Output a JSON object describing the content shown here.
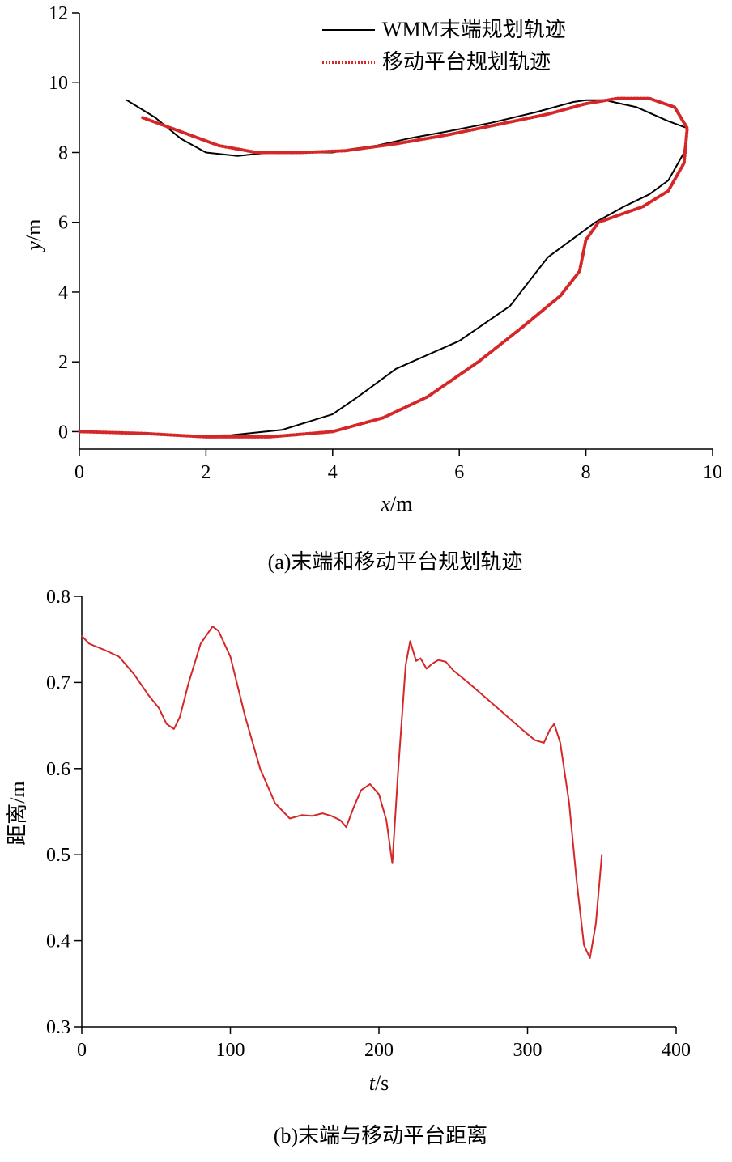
{
  "chart_data": [
    {
      "type": "line",
      "caption": "(a)末端和移动平台规划轨迹",
      "xlabel": {
        "var": "x",
        "unit": "/m"
      },
      "ylabel": {
        "var": "y",
        "unit": "/m"
      },
      "xlim": [
        0,
        10
      ],
      "ylim": [
        -0.5,
        12
      ],
      "xticks": [
        0,
        2,
        4,
        6,
        8,
        10
      ],
      "yticks": [
        0,
        2,
        4,
        6,
        8,
        10,
        12
      ],
      "legend_position": "top-right",
      "grid": false,
      "series": [
        {
          "name": "WMM末端规划轨迹",
          "color": "#000000",
          "style": "solid",
          "x": [
            0.75,
            1.2,
            1.6,
            2.0,
            2.5,
            3.0,
            3.5,
            4.0,
            4.3,
            4.7,
            5.2,
            5.8,
            6.5,
            7.2,
            7.8,
            8.0,
            8.3,
            8.8,
            9.3,
            9.6,
            9.55,
            9.3,
            9.0,
            8.6,
            8.15,
            7.4,
            6.8,
            6.0,
            5.0,
            4.4,
            4.0,
            3.2,
            2.4,
            1.6,
            1.1
          ],
          "y": [
            9.5,
            9.0,
            8.4,
            8.0,
            7.9,
            8.0,
            8.0,
            8.0,
            8.1,
            8.2,
            8.4,
            8.6,
            8.85,
            9.15,
            9.45,
            9.5,
            9.5,
            9.3,
            8.9,
            8.7,
            8.0,
            7.2,
            6.8,
            6.45,
            6.0,
            5.0,
            3.6,
            2.6,
            1.8,
            1.0,
            0.5,
            0.05,
            -0.1,
            -0.12,
            -0.05
          ]
        },
        {
          "name": "移动平台规划轨迹",
          "color": "#d62728",
          "style": "dotted",
          "x": [
            1.0,
            1.6,
            2.2,
            2.8,
            3.5,
            4.2,
            5.0,
            5.8,
            6.6,
            7.4,
            8.0,
            8.5,
            9.0,
            9.4,
            9.6,
            9.55,
            9.3,
            8.9,
            8.2,
            8.0,
            7.9,
            7.6,
            7.0,
            6.3,
            5.5,
            4.8,
            4.0,
            3.0,
            2.0,
            1.0,
            0.0
          ],
          "y": [
            9.0,
            8.6,
            8.2,
            8.0,
            8.0,
            8.05,
            8.25,
            8.5,
            8.8,
            9.1,
            9.4,
            9.55,
            9.55,
            9.3,
            8.7,
            7.7,
            6.9,
            6.45,
            6.0,
            5.5,
            4.6,
            3.9,
            3.0,
            2.0,
            1.0,
            0.4,
            0.0,
            -0.15,
            -0.15,
            -0.05,
            0.0
          ]
        }
      ]
    },
    {
      "type": "line",
      "caption": "(b)末端与移动平台距离",
      "xlabel": {
        "var": "t",
        "unit": "/s"
      },
      "ylabel": {
        "var": "",
        "unit": "距离/m"
      },
      "xlim": [
        0,
        400
      ],
      "ylim": [
        0.3,
        0.8
      ],
      "xticks": [
        0,
        100,
        200,
        300,
        400
      ],
      "yticks": [
        0.3,
        0.4,
        0.5,
        0.6,
        0.7,
        0.8
      ],
      "yticklabels": [
        "0.3",
        "0.4",
        "0.5",
        "0.6",
        "0.7",
        "0.8"
      ],
      "grid": false,
      "series": [
        {
          "name": "",
          "color": "#d62728",
          "style": "solid",
          "x": [
            0,
            5,
            15,
            25,
            35,
            45,
            52,
            57,
            62,
            66,
            72,
            80,
            88,
            92,
            100,
            110,
            120,
            130,
            140,
            148,
            155,
            162,
            168,
            174,
            178,
            183,
            188,
            194,
            200,
            205,
            209,
            213,
            218,
            221,
            225,
            228,
            232,
            236,
            240,
            245,
            250,
            260,
            270,
            280,
            290,
            300,
            305,
            311,
            315,
            318,
            322,
            328,
            333,
            338,
            342,
            346,
            350
          ],
          "y": [
            0.754,
            0.745,
            0.738,
            0.73,
            0.71,
            0.685,
            0.67,
            0.652,
            0.646,
            0.66,
            0.7,
            0.745,
            0.765,
            0.76,
            0.73,
            0.66,
            0.6,
            0.56,
            0.542,
            0.546,
            0.545,
            0.548,
            0.545,
            0.54,
            0.532,
            0.555,
            0.575,
            0.582,
            0.57,
            0.54,
            0.49,
            0.6,
            0.72,
            0.748,
            0.725,
            0.728,
            0.716,
            0.722,
            0.726,
            0.724,
            0.714,
            0.7,
            0.685,
            0.67,
            0.655,
            0.64,
            0.633,
            0.63,
            0.645,
            0.652,
            0.63,
            0.56,
            0.47,
            0.395,
            0.38,
            0.42,
            0.5
          ]
        }
      ]
    }
  ]
}
